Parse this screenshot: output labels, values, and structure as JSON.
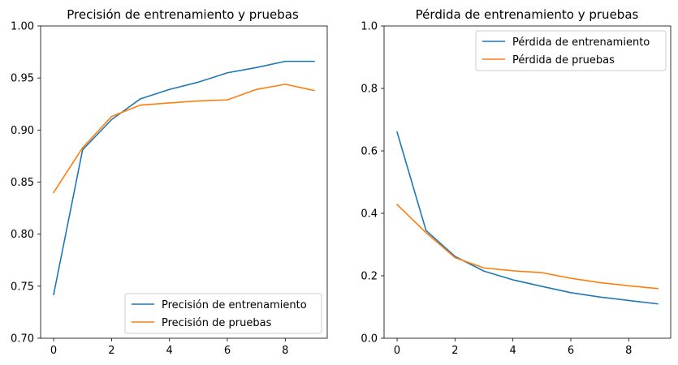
{
  "colors": {
    "blue": "#1f77b4",
    "orange": "#ff7f0e"
  },
  "chart_data": [
    {
      "type": "line",
      "title": "Precisión de entrenamiento y pruebas",
      "xlabel": "",
      "ylabel": "",
      "x": [
        0,
        1,
        2,
        3,
        4,
        5,
        6,
        7,
        8,
        9
      ],
      "xlim": [
        -0.45,
        9.45
      ],
      "ylim": [
        0.7,
        1.0
      ],
      "xticks": [
        0,
        2,
        4,
        6,
        8
      ],
      "xtick_labels": [
        "0",
        "2",
        "4",
        "6",
        "8"
      ],
      "yticks": [
        0.7,
        0.75,
        0.8,
        0.85,
        0.9,
        0.95,
        1.0
      ],
      "ytick_labels": [
        "0.70",
        "0.75",
        "0.80",
        "0.85",
        "0.90",
        "0.95",
        "1.00"
      ],
      "grid": false,
      "legend_position": "bottom-right",
      "series": [
        {
          "name": "Precisión de entrenamiento",
          "color": "#1f77b4",
          "values": [
            0.742,
            0.881,
            0.91,
            0.93,
            0.939,
            0.946,
            0.955,
            0.96,
            0.966,
            0.966
          ]
        },
        {
          "name": "Precisión de pruebas",
          "color": "#ff7f0e",
          "values": [
            0.84,
            0.883,
            0.913,
            0.924,
            0.926,
            0.928,
            0.929,
            0.939,
            0.944,
            0.938
          ]
        }
      ]
    },
    {
      "type": "line",
      "title": "Pérdida de entrenamiento y pruebas",
      "xlabel": "",
      "ylabel": "",
      "x": [
        0,
        1,
        2,
        3,
        4,
        5,
        6,
        7,
        8,
        9
      ],
      "xlim": [
        -0.45,
        9.45
      ],
      "ylim": [
        0.0,
        1.0
      ],
      "xticks": [
        0,
        2,
        4,
        6,
        8
      ],
      "xtick_labels": [
        "0",
        "2",
        "4",
        "6",
        "8"
      ],
      "yticks": [
        0.0,
        0.2,
        0.4,
        0.6,
        0.8,
        1.0
      ],
      "ytick_labels": [
        "0.0",
        "0.2",
        "0.4",
        "0.6",
        "0.8",
        "1.0"
      ],
      "grid": false,
      "legend_position": "top-right",
      "series": [
        {
          "name": "Pérdida de entrenamiento",
          "color": "#1f77b4",
          "values": [
            0.66,
            0.345,
            0.262,
            0.215,
            0.187,
            0.166,
            0.146,
            0.132,
            0.121,
            0.11
          ]
        },
        {
          "name": "Pérdida de pruebas",
          "color": "#ff7f0e",
          "values": [
            0.428,
            0.338,
            0.258,
            0.225,
            0.216,
            0.21,
            0.192,
            0.178,
            0.168,
            0.159
          ]
        }
      ]
    }
  ]
}
